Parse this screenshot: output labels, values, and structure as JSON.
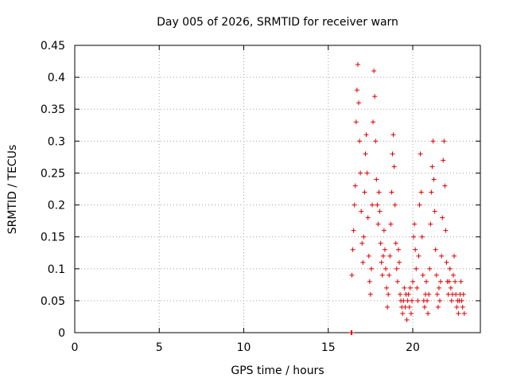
{
  "chart_data": {
    "type": "scatter",
    "title": "Day 005 of 2026, SRMTID for receiver warn",
    "xlabel": "GPS time / hours",
    "ylabel": "SRMTID / TECUs",
    "xlim": [
      0,
      24
    ],
    "ylim": [
      0,
      0.45
    ],
    "xticks": [
      0,
      5,
      10,
      15,
      20
    ],
    "xtick_labels": [
      "0",
      "5",
      "10",
      "15",
      "20"
    ],
    "yticks": [
      0,
      0.05,
      0.1,
      0.15,
      0.2,
      0.25,
      0.3,
      0.35,
      0.4,
      0.45
    ],
    "ytick_labels": [
      "0",
      "0.05",
      "0.1",
      "0.15",
      "0.2",
      "0.25",
      "0.3",
      "0.35",
      "0.4",
      "0.45"
    ],
    "grid": true,
    "marker_color": "#e00000",
    "series": [
      {
        "name": "SRMTID",
        "marker": "plus",
        "points": [
          [
            16.35,
            0.0
          ],
          [
            16.4,
            0.0
          ],
          [
            16.4,
            0.09
          ],
          [
            16.45,
            0.13
          ],
          [
            16.5,
            0.16
          ],
          [
            16.55,
            0.2
          ],
          [
            16.6,
            0.23
          ],
          [
            16.65,
            0.33
          ],
          [
            16.7,
            0.38
          ],
          [
            16.75,
            0.42
          ],
          [
            16.8,
            0.36
          ],
          [
            16.85,
            0.3
          ],
          [
            16.9,
            0.25
          ],
          [
            16.95,
            0.19
          ],
          [
            17.0,
            0.14
          ],
          [
            17.05,
            0.11
          ],
          [
            17.1,
            0.15
          ],
          [
            17.15,
            0.22
          ],
          [
            17.2,
            0.28
          ],
          [
            17.25,
            0.31
          ],
          [
            17.3,
            0.25
          ],
          [
            17.35,
            0.18
          ],
          [
            17.4,
            0.12
          ],
          [
            17.45,
            0.08
          ],
          [
            17.5,
            0.06
          ],
          [
            17.55,
            0.1
          ],
          [
            17.6,
            0.2
          ],
          [
            17.65,
            0.33
          ],
          [
            17.7,
            0.41
          ],
          [
            17.75,
            0.37
          ],
          [
            17.8,
            0.3
          ],
          [
            17.85,
            0.24
          ],
          [
            17.9,
            0.2
          ],
          [
            17.95,
            0.17
          ],
          [
            18.0,
            0.22
          ],
          [
            18.05,
            0.19
          ],
          [
            18.1,
            0.14
          ],
          [
            18.15,
            0.11
          ],
          [
            18.2,
            0.09
          ],
          [
            18.25,
            0.12
          ],
          [
            18.3,
            0.16
          ],
          [
            18.35,
            0.13
          ],
          [
            18.4,
            0.1
          ],
          [
            18.45,
            0.07
          ],
          [
            18.5,
            0.04
          ],
          [
            18.55,
            0.06
          ],
          [
            18.6,
            0.09
          ],
          [
            18.65,
            0.12
          ],
          [
            18.7,
            0.17
          ],
          [
            18.75,
            0.22
          ],
          [
            18.8,
            0.28
          ],
          [
            18.85,
            0.31
          ],
          [
            18.9,
            0.26
          ],
          [
            18.95,
            0.2
          ],
          [
            19.0,
            0.14
          ],
          [
            19.05,
            0.1
          ],
          [
            19.1,
            0.08
          ],
          [
            19.15,
            0.13
          ],
          [
            19.2,
            0.11
          ],
          [
            19.25,
            0.06
          ],
          [
            19.3,
            0.05
          ],
          [
            19.35,
            0.04
          ],
          [
            19.4,
            0.03
          ],
          [
            19.45,
            0.05
          ],
          [
            19.5,
            0.07
          ],
          [
            19.55,
            0.04
          ],
          [
            19.6,
            0.06
          ],
          [
            19.65,
            0.02
          ],
          [
            19.7,
            0.05
          ],
          [
            19.75,
            0.06
          ],
          [
            19.8,
            0.04
          ],
          [
            19.85,
            0.07
          ],
          [
            19.9,
            0.03
          ],
          [
            19.95,
            0.05
          ],
          [
            20.0,
            0.08
          ],
          [
            20.05,
            0.15
          ],
          [
            20.1,
            0.17
          ],
          [
            20.15,
            0.13
          ],
          [
            20.2,
            0.1
          ],
          [
            20.25,
            0.07
          ],
          [
            20.3,
            0.05
          ],
          [
            20.35,
            0.12
          ],
          [
            20.4,
            0.2
          ],
          [
            20.45,
            0.28
          ],
          [
            20.5,
            0.22
          ],
          [
            20.55,
            0.15
          ],
          [
            20.6,
            0.09
          ],
          [
            20.65,
            0.05
          ],
          [
            20.7,
            0.04
          ],
          [
            20.75,
            0.06
          ],
          [
            20.8,
            0.08
          ],
          [
            20.85,
            0.05
          ],
          [
            20.9,
            0.03
          ],
          [
            20.95,
            0.06
          ],
          [
            21.0,
            0.1
          ],
          [
            21.05,
            0.17
          ],
          [
            21.1,
            0.22
          ],
          [
            21.15,
            0.26
          ],
          [
            21.2,
            0.3
          ],
          [
            21.25,
            0.24
          ],
          [
            21.3,
            0.19
          ],
          [
            21.35,
            0.13
          ],
          [
            21.4,
            0.09
          ],
          [
            21.45,
            0.06
          ],
          [
            21.5,
            0.04
          ],
          [
            21.55,
            0.07
          ],
          [
            21.6,
            0.05
          ],
          [
            21.65,
            0.08
          ],
          [
            21.7,
            0.12
          ],
          [
            21.75,
            0.18
          ],
          [
            21.8,
            0.27
          ],
          [
            21.85,
            0.3
          ],
          [
            21.9,
            0.23
          ],
          [
            21.95,
            0.16
          ],
          [
            22.0,
            0.11
          ],
          [
            22.05,
            0.08
          ],
          [
            22.1,
            0.06
          ],
          [
            22.15,
            0.08
          ],
          [
            22.2,
            0.1
          ],
          [
            22.25,
            0.07
          ],
          [
            22.3,
            0.05
          ],
          [
            22.35,
            0.06
          ],
          [
            22.4,
            0.09
          ],
          [
            22.45,
            0.12
          ],
          [
            22.5,
            0.08
          ],
          [
            22.55,
            0.06
          ],
          [
            22.6,
            0.04
          ],
          [
            22.65,
            0.05
          ],
          [
            22.7,
            0.03
          ],
          [
            22.75,
            0.05
          ],
          [
            22.8,
            0.06
          ],
          [
            22.85,
            0.08
          ],
          [
            22.9,
            0.05
          ],
          [
            22.95,
            0.04
          ],
          [
            23.0,
            0.06
          ],
          [
            23.05,
            0.03
          ]
        ]
      }
    ]
  }
}
